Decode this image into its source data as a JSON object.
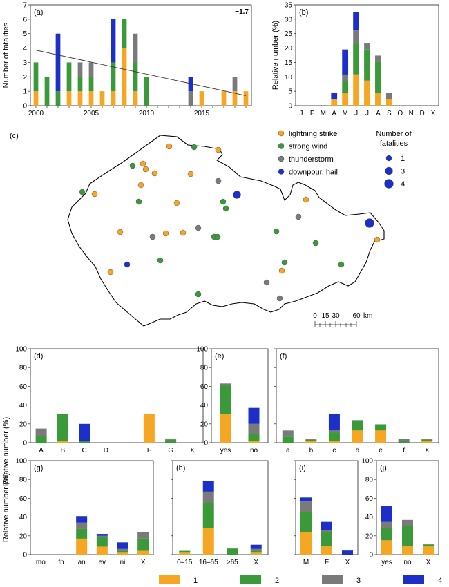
{
  "colors": {
    "lightning": "#f5a623",
    "wind": "#3a9a3a",
    "thunder": "#7a7a7a",
    "downpour": "#1c2fc8",
    "c1": "#f5a623",
    "c2": "#3a9a3a",
    "c3": "#7a7a7a",
    "c4": "#1c2fc8"
  },
  "bottom_legend": {
    "items": [
      {
        "label": "1",
        "color": "#f5a623"
      },
      {
        "label": "2",
        "color": "#3a9a3a"
      },
      {
        "label": "3",
        "color": "#7a7a7a"
      },
      {
        "label": "4",
        "color": "#1c2fc8"
      }
    ]
  },
  "map": {
    "panel_label": "(c)",
    "legend_types": [
      {
        "label": "lightning strike",
        "color": "#f5a623"
      },
      {
        "label": "strong wind",
        "color": "#3a9a3a"
      },
      {
        "label": "thunderstorm",
        "color": "#7a7a7a"
      },
      {
        "label": "downpour, hail",
        "color": "#1c2fc8"
      }
    ],
    "legend_size_title_1": "Number of",
    "legend_size_title_2": "fatalities",
    "legend_sizes": [
      {
        "label": "1",
        "count": 1
      },
      {
        "label": "3",
        "count": 3
      },
      {
        "label": "4",
        "count": 4
      }
    ],
    "scalebar": {
      "labels": [
        "0",
        "15",
        "30",
        "60"
      ],
      "unit": "km"
    }
  },
  "chart_data": [
    {
      "id": "a",
      "panel_label": "(a)",
      "type": "bar",
      "ylabel": "Number of fatalities",
      "ylim": [
        0,
        7
      ],
      "yticks": [
        0,
        1,
        2,
        3,
        4,
        5,
        6,
        7
      ],
      "xlim": [
        1999.5,
        2019.5
      ],
      "xticks": [
        2000,
        2005,
        2010,
        2015
      ],
      "x": [
        2000,
        2001,
        2002,
        2003,
        2004,
        2005,
        2006,
        2007,
        2008,
        2009,
        2010,
        2011,
        2012,
        2013,
        2014,
        2015,
        2016,
        2017,
        2018,
        2019
      ],
      "series": [
        {
          "color": "#f5a623",
          "values": [
            1,
            0,
            0,
            1,
            1,
            1,
            1,
            1,
            4,
            1,
            0,
            0,
            0,
            0,
            0,
            1,
            0,
            1,
            1,
            1
          ]
        },
        {
          "color": "#3a9a3a",
          "values": [
            2,
            2,
            1,
            2,
            1,
            1,
            0,
            2,
            2,
            2,
            2,
            0,
            0,
            0,
            0,
            0,
            0,
            0,
            0,
            0
          ]
        },
        {
          "color": "#7a7a7a",
          "values": [
            0,
            0,
            0,
            0,
            1,
            1,
            0,
            0,
            0,
            2,
            0,
            0,
            0,
            0,
            1,
            0,
            0,
            0,
            1,
            0
          ]
        },
        {
          "color": "#1c2fc8",
          "values": [
            0,
            0,
            4,
            0,
            0,
            0,
            0,
            3,
            0,
            0,
            0,
            0,
            0,
            0,
            1,
            0,
            0,
            0,
            0,
            0
          ]
        }
      ],
      "trend": {
        "x": [
          2000,
          2019
        ],
        "y": [
          3.85,
          0.7
        ],
        "annotation": "−1.7"
      }
    },
    {
      "id": "b",
      "panel_label": "(b)",
      "type": "bar",
      "ylabel": "Relative number (%)",
      "ylim": [
        0,
        35
      ],
      "yticks": [
        0,
        5,
        10,
        15,
        20,
        25,
        30,
        35
      ],
      "categories": [
        "J",
        "F",
        "M",
        "A",
        "M",
        "J",
        "J",
        "A",
        "S",
        "O",
        "N",
        "D",
        "X"
      ],
      "series": [
        {
          "color": "#f5a623",
          "values": [
            0,
            0,
            0,
            2.2,
            4.3,
            10.9,
            8.7,
            4.3,
            2.2,
            0,
            0,
            0,
            0
          ]
        },
        {
          "color": "#3a9a3a",
          "values": [
            0,
            0,
            0,
            0,
            4.3,
            10.9,
            10.9,
            10.9,
            0,
            0,
            0,
            0,
            0
          ]
        },
        {
          "color": "#7a7a7a",
          "values": [
            0,
            0,
            0,
            0,
            2.2,
            4.3,
            2.2,
            2.2,
            2.2,
            0,
            0,
            0,
            0
          ]
        },
        {
          "color": "#1c2fc8",
          "values": [
            0,
            0,
            0,
            2.2,
            8.7,
            6.5,
            0,
            0,
            0,
            0,
            0,
            0,
            0
          ]
        }
      ]
    },
    {
      "id": "d",
      "panel_label": "(d)",
      "type": "bar",
      "ylabel": "Relative number (%)",
      "ylim": [
        0,
        100
      ],
      "yticks": [
        0,
        20,
        40,
        60,
        80,
        100
      ],
      "categories": [
        "A",
        "B",
        "C",
        "D",
        "E",
        "F",
        "G",
        "X"
      ],
      "series": [
        {
          "color": "#f5a623",
          "values": [
            0,
            2,
            0,
            0,
            0,
            30.5,
            0,
            0
          ]
        },
        {
          "color": "#3a9a3a",
          "values": [
            7,
            28.5,
            2,
            0,
            0,
            0,
            3,
            0
          ]
        },
        {
          "color": "#7a7a7a",
          "values": [
            8,
            0,
            0,
            0,
            0,
            0,
            1.5,
            0
          ]
        },
        {
          "color": "#1c2fc8",
          "values": [
            0,
            0,
            18,
            0,
            0,
            0,
            0,
            0
          ]
        }
      ]
    },
    {
      "id": "e",
      "panel_label": "(e)",
      "type": "bar",
      "ylim": [
        0,
        100
      ],
      "yticks": [
        0,
        20,
        40,
        60,
        80,
        100
      ],
      "categories": [
        "yes",
        "no"
      ],
      "series": [
        {
          "color": "#f5a623",
          "values": [
            30.5,
            2
          ]
        },
        {
          "color": "#3a9a3a",
          "values": [
            30.5,
            7
          ]
        },
        {
          "color": "#7a7a7a",
          "values": [
            2,
            11
          ]
        },
        {
          "color": "#1c2fc8",
          "values": [
            0,
            17
          ]
        }
      ]
    },
    {
      "id": "f",
      "panel_label": "(f)",
      "type": "bar",
      "ylim": [
        0,
        100
      ],
      "yticks": [
        0,
        20,
        40,
        60,
        80,
        100
      ],
      "categories": [
        "a",
        "b",
        "c",
        "d",
        "e",
        "f",
        "X"
      ],
      "series": [
        {
          "color": "#f5a623",
          "values": [
            0,
            2,
            2,
            13,
            13,
            0,
            2
          ]
        },
        {
          "color": "#3a9a3a",
          "values": [
            6.5,
            1,
            9,
            11,
            6.5,
            2,
            1
          ]
        },
        {
          "color": "#7a7a7a",
          "values": [
            6.5,
            1,
            2,
            0,
            0,
            2,
            1
          ]
        },
        {
          "color": "#1c2fc8",
          "values": [
            0,
            0,
            17.5,
            0,
            0,
            0,
            0
          ]
        }
      ]
    },
    {
      "id": "g",
      "panel_label": "(g)",
      "type": "bar",
      "ylabel": "Relative number (%)",
      "ylim": [
        0,
        100
      ],
      "yticks": [
        0,
        20,
        40,
        60,
        80,
        100
      ],
      "categories": [
        "mo",
        "fn",
        "an",
        "ev",
        "ni",
        "X"
      ],
      "series": [
        {
          "color": "#f5a623",
          "values": [
            0,
            0,
            17,
            8.5,
            2,
            4
          ]
        },
        {
          "color": "#3a9a3a",
          "values": [
            0,
            0,
            10.5,
            10.5,
            2,
            13
          ]
        },
        {
          "color": "#7a7a7a",
          "values": [
            0,
            0,
            6.5,
            1,
            2,
            7
          ]
        },
        {
          "color": "#1c2fc8",
          "values": [
            0,
            0,
            7,
            2,
            7,
            0
          ]
        }
      ]
    },
    {
      "id": "h",
      "panel_label": "(h)",
      "type": "bar",
      "ylim": [
        0,
        100
      ],
      "yticks": [
        0,
        20,
        40,
        60,
        80,
        100
      ],
      "categories": [
        "0–15",
        "16–65",
        ">65",
        "X"
      ],
      "series": [
        {
          "color": "#f5a623",
          "values": [
            2,
            28.5,
            0,
            2
          ]
        },
        {
          "color": "#3a9a3a",
          "values": [
            2,
            26,
            6.5,
            2
          ]
        },
        {
          "color": "#7a7a7a",
          "values": [
            0,
            12.5,
            0,
            2
          ]
        },
        {
          "color": "#1c2fc8",
          "values": [
            0,
            11,
            0,
            4.5
          ]
        }
      ]
    },
    {
      "id": "i",
      "panel_label": "(i)",
      "type": "bar",
      "ylim": [
        0,
        100
      ],
      "yticks": [
        0,
        20,
        40,
        60,
        80,
        100
      ],
      "categories": [
        "M",
        "F",
        "X"
      ],
      "series": [
        {
          "color": "#f5a623",
          "values": [
            23.9,
            8.7,
            0
          ]
        },
        {
          "color": "#3a9a3a",
          "values": [
            21.7,
            15.2,
            0
          ]
        },
        {
          "color": "#7a7a7a",
          "values": [
            10.9,
            2.2,
            0
          ]
        },
        {
          "color": "#1c2fc8",
          "values": [
            4.3,
            8.7,
            4.3
          ]
        }
      ]
    },
    {
      "id": "j",
      "panel_label": "(j)",
      "type": "bar",
      "ylim": [
        0,
        100
      ],
      "yticks": [
        0,
        20,
        40,
        60,
        80,
        100
      ],
      "categories": [
        "yes",
        "no",
        "X"
      ],
      "series": [
        {
          "color": "#f5a623",
          "values": [
            15.2,
            8.7,
            8.7
          ]
        },
        {
          "color": "#3a9a3a",
          "values": [
            13,
            21.7,
            2.2
          ]
        },
        {
          "color": "#7a7a7a",
          "values": [
            6.5,
            6.5,
            0
          ]
        },
        {
          "color": "#1c2fc8",
          "values": [
            17.4,
            0,
            0
          ]
        }
      ]
    }
  ]
}
